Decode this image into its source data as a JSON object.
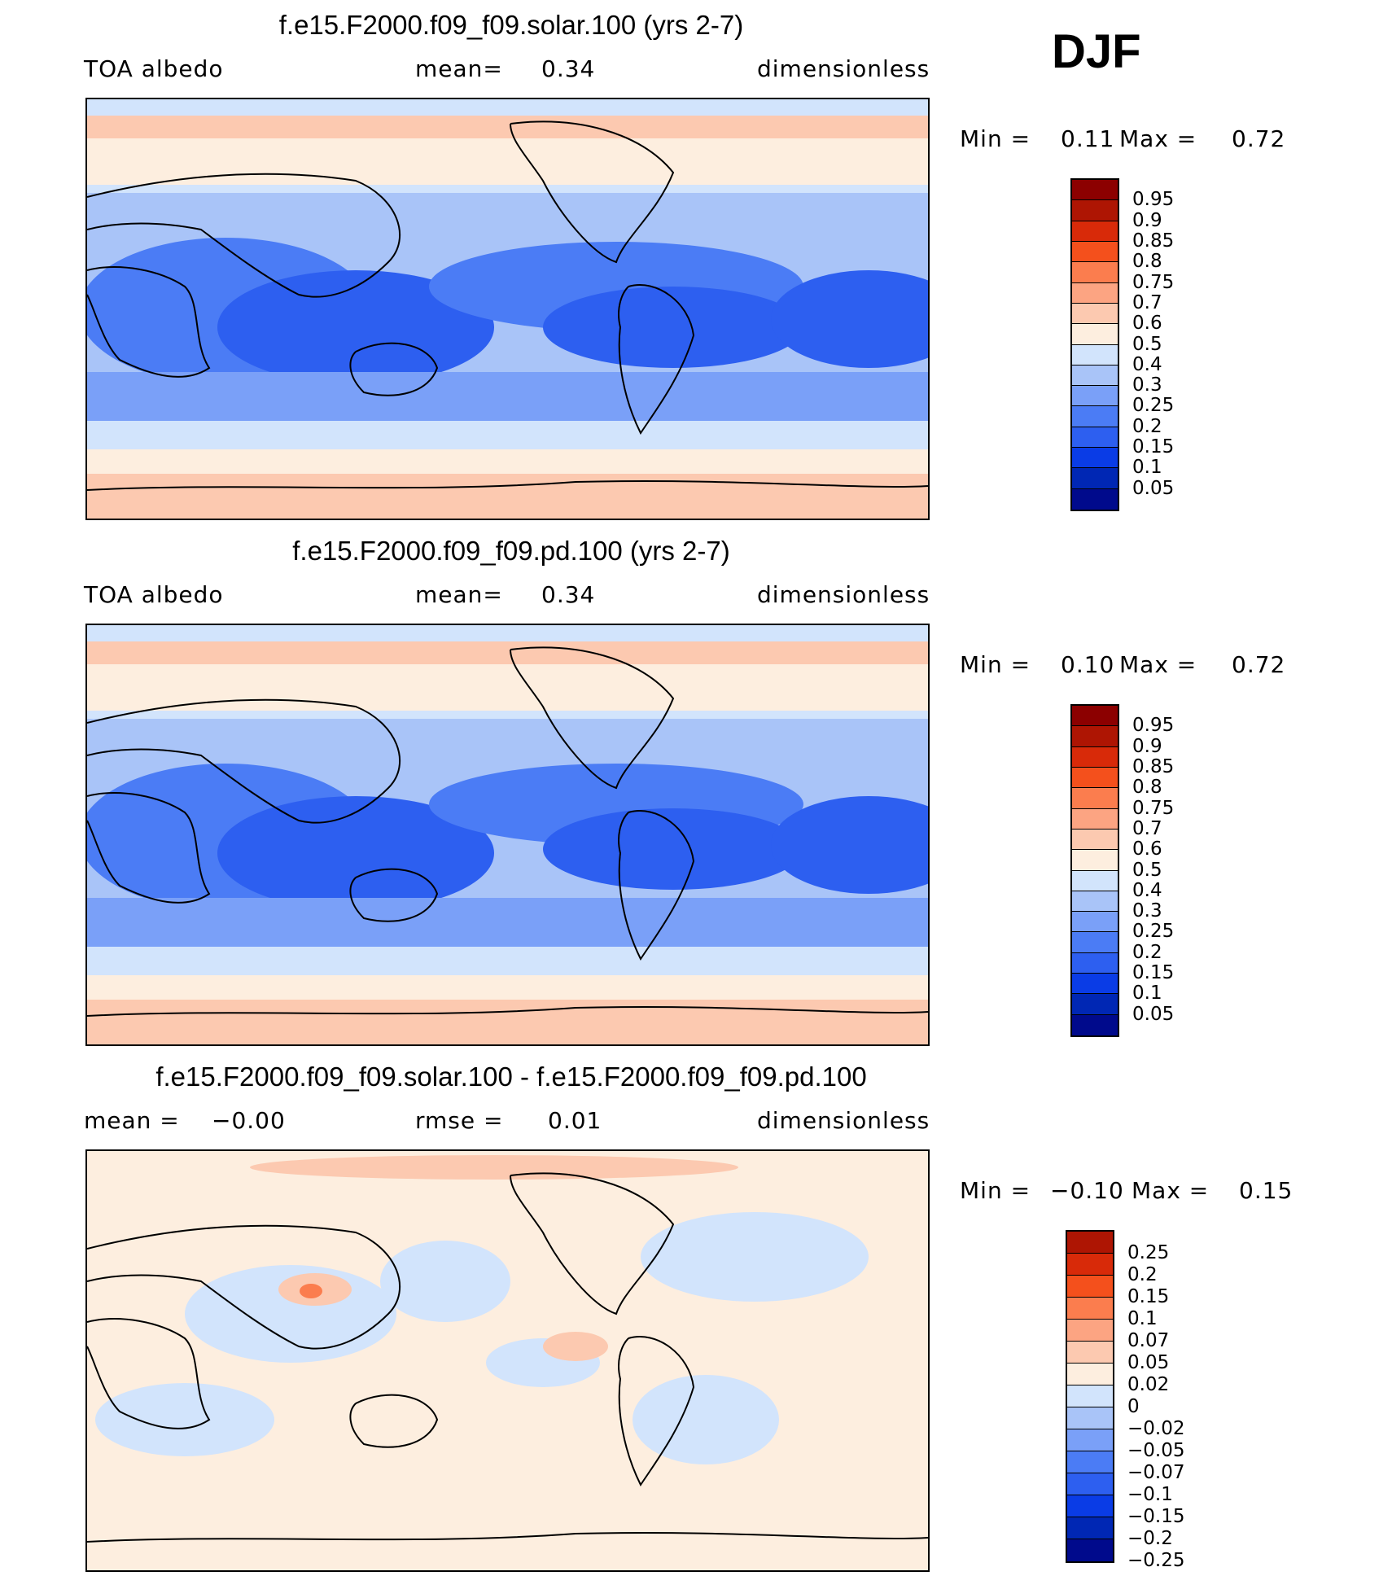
{
  "season": "DJF",
  "colors": {
    "abs_scale": [
      "#000a8c",
      "#0027b4",
      "#0a3ce6",
      "#2d5ff0",
      "#4b7cf5",
      "#7aa0f8",
      "#a9c4f8",
      "#d2e4fc",
      "#fdeedf",
      "#fcc9b0",
      "#fca482",
      "#fb7d4e",
      "#f4501c",
      "#d82a09",
      "#ae1503",
      "#8c0000"
    ],
    "diff_scale": [
      "#000a8c",
      "#0027b4",
      "#0a3ce6",
      "#2d5ff0",
      "#4b7cf5",
      "#7aa0f8",
      "#a9c4f8",
      "#d2e4fc",
      "#fdeedf",
      "#fcc9b0",
      "#fca482",
      "#fb7d4e",
      "#f4501c",
      "#d82a09",
      "#ae1503"
    ]
  },
  "panels": [
    {
      "title": "f.e15.F2000.f09_f09.solar.100 (yrs 2-7)",
      "left_label": "TOA albedo",
      "center_label": "mean=",
      "center_value": "0.34",
      "right_label": "dimensionless",
      "min_label": "Min =",
      "min_value": "0.11",
      "max_label": "Max =",
      "max_value": "0.72",
      "legend_labels": [
        "0.95",
        "0.9",
        "0.85",
        "0.8",
        "0.75",
        "0.7",
        "0.6",
        "0.5",
        "0.4",
        "0.3",
        "0.25",
        "0.2",
        "0.15",
        "0.1",
        "0.05"
      ]
    },
    {
      "title": "f.e15.F2000.f09_f09.pd.100 (yrs 2-7)",
      "left_label": "TOA albedo",
      "center_label": "mean=",
      "center_value": "0.34",
      "right_label": "dimensionless",
      "min_label": "Min =",
      "min_value": "0.10",
      "max_label": "Max =",
      "max_value": "0.72",
      "legend_labels": [
        "0.95",
        "0.9",
        "0.85",
        "0.8",
        "0.75",
        "0.7",
        "0.6",
        "0.5",
        "0.4",
        "0.3",
        "0.25",
        "0.2",
        "0.15",
        "0.1",
        "0.05"
      ]
    },
    {
      "title": "f.e15.F2000.f09_f09.solar.100 - f.e15.F2000.f09_f09.pd.100",
      "left_label": "mean =",
      "left_value": "−0.00",
      "center_label": "rmse =",
      "center_value": "0.01",
      "right_label": "dimensionless",
      "min_label": "Min =",
      "min_value": "−0.10",
      "max_label": "Max =",
      "max_value": "0.15",
      "legend_labels": [
        "0.25",
        "0.2",
        "0.15",
        "0.1",
        "0.07",
        "0.05",
        "0.02",
        "0",
        "−0.02",
        "−0.05",
        "−0.07",
        "−0.1",
        "−0.15",
        "−0.2",
        "−0.25"
      ]
    }
  ]
}
